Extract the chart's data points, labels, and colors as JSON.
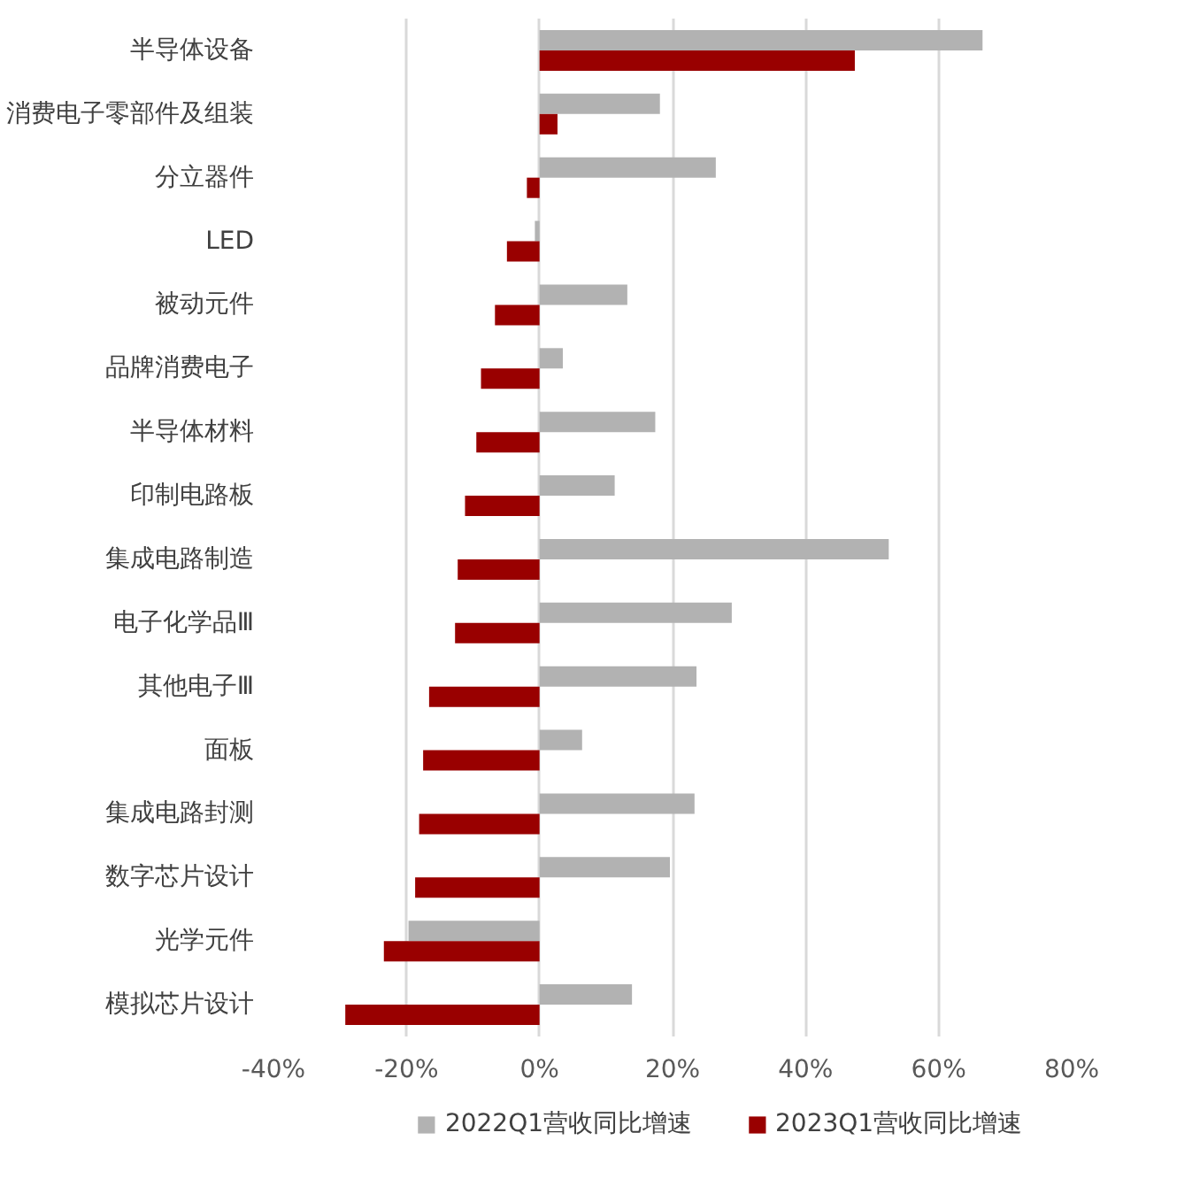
{
  "chart_data": {
    "type": "bar",
    "orientation": "horizontal",
    "categories": [
      "半导体设备",
      "消费电子零部件及组装",
      "分立器件",
      "LED",
      "被动元件",
      "品牌消费电子",
      "半导体材料",
      "印制电路板",
      "集成电路制造",
      "电子化学品Ⅲ",
      "其他电子Ⅲ",
      "面板",
      "集成电路封测",
      "数字芯片设计",
      "光学元件",
      "模拟芯片设计"
    ],
    "series": [
      {
        "name": "2022Q1营收同比增速",
        "color": "#b2b2b2",
        "values": [
          66.6,
          18.1,
          26.5,
          -0.7,
          13.2,
          3.5,
          17.4,
          11.3,
          52.5,
          28.9,
          23.6,
          6.4,
          23.3,
          19.6,
          -19.7,
          13.9
        ]
      },
      {
        "name": "2023Q1营收同比增速",
        "color": "#990000",
        "values": [
          47.4,
          2.7,
          -1.9,
          -4.9,
          -6.7,
          -8.8,
          -9.5,
          -11.2,
          -12.3,
          -12.7,
          -16.6,
          -17.5,
          -18.1,
          -18.7,
          -23.4,
          -29.2
        ]
      }
    ],
    "xlim": [
      -40,
      80
    ],
    "xticks": [
      {
        "value": -40,
        "label": "-40%"
      },
      {
        "value": -20,
        "label": "-20%"
      },
      {
        "value": 0,
        "label": "0%"
      },
      {
        "value": 20,
        "label": "20%"
      },
      {
        "value": 40,
        "label": "40%"
      },
      {
        "value": 60,
        "label": "60%"
      },
      {
        "value": 80,
        "label": "80%"
      }
    ],
    "grid": "x",
    "legend": "bottom"
  }
}
